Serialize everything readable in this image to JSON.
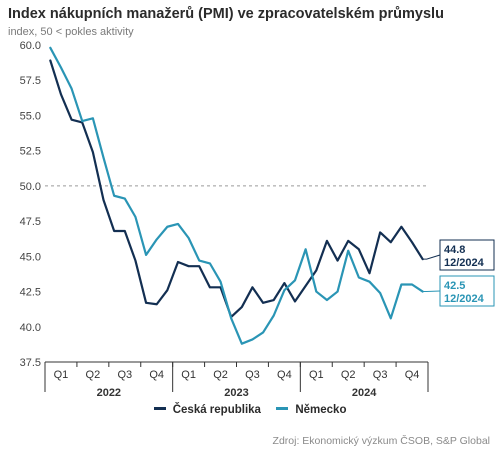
{
  "header": {
    "title": "Index nákupních manažerů (PMI) ve zpracovatelském průmyslu",
    "subtitle": "index, 50 < pokles aktivity"
  },
  "footer": {
    "source": "Zdroj: Ekonomický výzkum ČSOB, S&P Global"
  },
  "colors": {
    "cz": "#132f52",
    "de": "#2a95b5",
    "reference": "#9a9a9a",
    "axis": "#333333",
    "text": "#2b2b2b"
  },
  "chart_data": {
    "type": "line",
    "title": "Index nákupních manažerů (PMI) ve zpracovatelském průmyslu",
    "subtitle": "index, 50 < pokles aktivity",
    "xlabel": "",
    "ylabel": "",
    "ylim": [
      37.5,
      60.0
    ],
    "yticks": [
      37.5,
      40.0,
      42.5,
      45.0,
      47.5,
      50.0,
      52.5,
      55.0,
      57.5,
      60.0
    ],
    "ytick_labels": [
      "37.5",
      "40.0",
      "42.5",
      "45.0",
      "47.5",
      "50.0",
      "52.5",
      "55.0",
      "57.5",
      "60.0"
    ],
    "x": [
      "01/2022",
      "02/2022",
      "03/2022",
      "04/2022",
      "05/2022",
      "06/2022",
      "07/2022",
      "08/2022",
      "09/2022",
      "10/2022",
      "11/2022",
      "12/2022",
      "01/2023",
      "02/2023",
      "03/2023",
      "04/2023",
      "05/2023",
      "06/2023",
      "07/2023",
      "08/2023",
      "09/2023",
      "10/2023",
      "11/2023",
      "12/2023",
      "01/2024",
      "02/2024",
      "03/2024",
      "04/2024",
      "05/2024",
      "06/2024",
      "07/2024",
      "08/2024",
      "09/2024",
      "10/2024",
      "11/2024",
      "12/2024"
    ],
    "quarter_labels": [
      "Q1",
      "Q2",
      "Q3",
      "Q4",
      "Q1",
      "Q2",
      "Q3",
      "Q4",
      "Q1",
      "Q2",
      "Q3",
      "Q4"
    ],
    "year_labels": [
      "2022",
      "2023",
      "2024"
    ],
    "reference_line": 50.0,
    "grid": false,
    "legend_position": "bottom",
    "series": [
      {
        "name": "Česká republika",
        "color": "#132f52",
        "values": [
          58.9,
          56.5,
          54.7,
          54.5,
          52.4,
          49.0,
          46.8,
          46.8,
          44.7,
          41.7,
          41.6,
          42.6,
          44.6,
          44.3,
          44.3,
          42.8,
          42.8,
          40.7,
          41.4,
          42.8,
          41.7,
          41.9,
          43.1,
          41.8,
          42.9,
          44.0,
          46.1,
          44.7,
          46.1,
          45.5,
          43.8,
          46.7,
          46.0,
          47.1,
          46.0,
          44.8
        ]
      },
      {
        "name": "Německo",
        "color": "#2a95b5",
        "values": [
          59.8,
          58.4,
          56.9,
          54.6,
          54.8,
          52.0,
          49.3,
          49.1,
          47.8,
          45.1,
          46.2,
          47.1,
          47.3,
          46.3,
          44.7,
          44.5,
          43.2,
          40.6,
          38.8,
          39.1,
          39.6,
          40.8,
          42.6,
          43.3,
          45.5,
          42.5,
          41.9,
          42.5,
          45.4,
          43.5,
          43.2,
          42.4,
          40.6,
          43.0,
          43.0,
          42.5
        ]
      }
    ],
    "end_labels": [
      {
        "series": "Česká republika",
        "value": "44.8",
        "date": "12/2024"
      },
      {
        "series": "Německo",
        "value": "42.5",
        "date": "12/2024"
      }
    ]
  }
}
